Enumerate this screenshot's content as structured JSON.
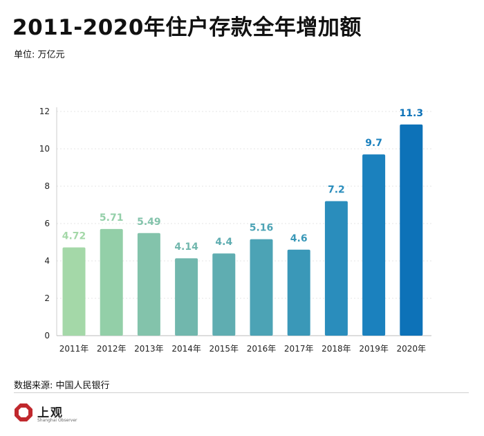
{
  "title": "2011-2020年住户存款全年增加额",
  "unit": "单位: 万亿元",
  "source": "数据来源: 中国人民银行",
  "logo": {
    "text": "上观",
    "subtext": "Shanghai Observer"
  },
  "chart_data": {
    "type": "bar",
    "title": "2011-2020年住户存款全年增加额",
    "xlabel": "",
    "ylabel": "",
    "categories": [
      "2011年",
      "2012年",
      "2013年",
      "2014年",
      "2015年",
      "2016年",
      "2017年",
      "2018年",
      "2019年",
      "2020年"
    ],
    "values": [
      4.72,
      5.71,
      5.49,
      4.14,
      4.4,
      5.16,
      4.6,
      7.2,
      9.7,
      11.3
    ],
    "value_labels": [
      "4.72",
      "5.71",
      "5.49",
      "4.14",
      "4.4",
      "5.16",
      "4.6",
      "7.2",
      "9.7",
      "11.3"
    ],
    "yticks": [
      0,
      2,
      4,
      6,
      8,
      10,
      12
    ],
    "ylim": [
      0,
      12
    ],
    "grid": true,
    "legend": "none",
    "bar_colors": [
      "#a4d8a8",
      "#93cfa8",
      "#83c3ab",
      "#71b7ad",
      "#5fadb1",
      "#4ca3b5",
      "#3a98b8",
      "#2a8dbc",
      "#1b81be",
      "#0d72b8"
    ]
  }
}
